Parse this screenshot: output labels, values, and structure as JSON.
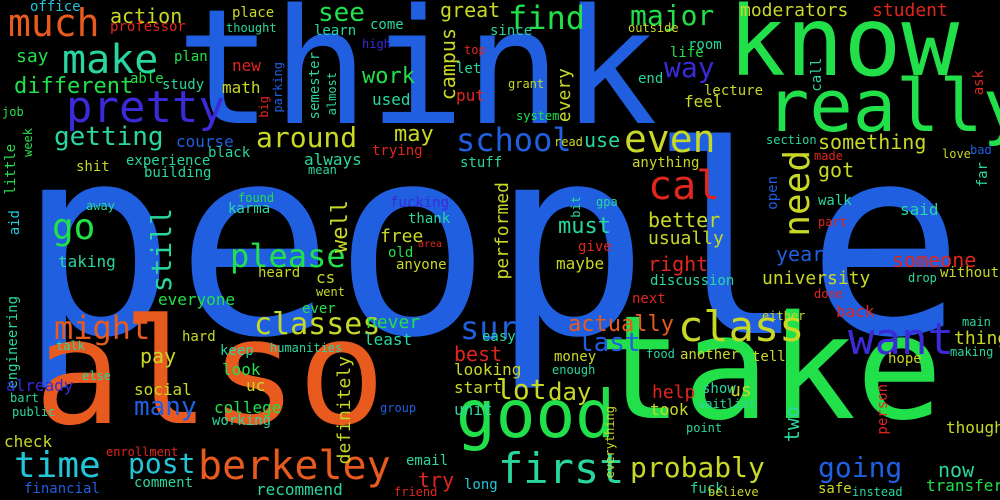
{
  "palette": {
    "background": "#000000",
    "blue": "#1f5fe0",
    "green": "#22e04a",
    "orange": "#e85a1e",
    "yellow": "#c8d826",
    "teal": "#2ad6a0",
    "cyan": "#22c6d8",
    "indigo": "#3a2ad8",
    "red": "#e0261f",
    "lime": "#7ad826",
    "gray_blue": "#3a6aa8"
  },
  "words": {
    "people": "people",
    "think": "think",
    "know": "know",
    "take": "take",
    "also": "also",
    "really": "really",
    "good": "good",
    "pretty": "pretty",
    "much": "much",
    "make": "make",
    "time": "time",
    "berkeley": "berkeley",
    "first": "first",
    "class": "class",
    "want": "want",
    "even": "even",
    "cal": "cal",
    "need": "need",
    "classes": "classes",
    "please": "please",
    "go": "go",
    "might": "might",
    "still": "still",
    "around": "around",
    "getting": "getting",
    "school": "school",
    "sure": "sure",
    "post": "post",
    "probably": "probably",
    "going": "going",
    "way": "way",
    "find": "find",
    "see": "see",
    "major": "major",
    "lot": "lot",
    "day": "day",
    "last": "last",
    "many": "many",
    "action": "action",
    "moderators": "moderators",
    "student": "student",
    "office": "office",
    "professor": "professor",
    "place": "place",
    "great": "great",
    "campus": "campus",
    "work": "work",
    "different": "different",
    "say": "say",
    "new": "new",
    "math": "math",
    "plan": "plan",
    "study": "study",
    "able": "able",
    "every": "every",
    "feel": "feel",
    "end": "end",
    "let": "let",
    "top": "top",
    "put": "put",
    "used": "used",
    "since": "since",
    "learn": "learn",
    "come": "come",
    "thought": "thought",
    "high": "high",
    "semester": "semester",
    "almost": "almost",
    "big": "big",
    "parking": "parking",
    "grant": "grant",
    "system": "system",
    "room": "room",
    "life": "life",
    "outside": "outside",
    "call": "call",
    "ask": "ask",
    "lecture": "lecture",
    "job": "job",
    "week": "week",
    "little": "little",
    "aid": "aid",
    "engineering": "engineering",
    "course": "course",
    "black": "black",
    "experience": "experience",
    "building": "building",
    "shit": "shit",
    "away": "away",
    "karma": "karma",
    "found": "found",
    "may": "may",
    "always": "always",
    "mean": "mean",
    "stuff": "stuff",
    "trying": "trying",
    "read": "read",
    "use": "use",
    "anything": "anything",
    "something": "something",
    "section": "section",
    "made": "made",
    "love": "love",
    "bad": "bad",
    "far": "far",
    "got": "got",
    "open": "open",
    "walk": "walk",
    "part": "part",
    "said": "said",
    "better": "better",
    "usually": "usually",
    "fucking": "fucking",
    "thank": "thank",
    "free": "free",
    "well": "well",
    "must": "must",
    "bit": "bit",
    "gpa": "gpa",
    "performed": "performed",
    "area": "area",
    "old": "old",
    "give": "give",
    "anyone": "anyone",
    "maybe": "maybe",
    "right": "right",
    "year": "year",
    "someone": "someone",
    "university": "university",
    "discussion": "discussion",
    "drop": "drop",
    "without": "without",
    "taking": "taking",
    "heard": "heard",
    "cs": "cs",
    "went": "went",
    "everyone": "everyone",
    "next": "next",
    "done": "done",
    "ever": "ever",
    "easy": "easy",
    "either": "either",
    "back": "back",
    "main": "main",
    "hard": "hard",
    "talk": "talk",
    "humanities": "humanities",
    "keep": "keep",
    "never": "never",
    "least": "least",
    "actually": "actually",
    "best": "best",
    "food": "food",
    "another": "another",
    "tell": "tell",
    "thing": "thing",
    "making": "making",
    "pay": "pay",
    "look": "look",
    "money": "money",
    "enough": "enough",
    "looking": "looking",
    "hope": "hope",
    "else": "else",
    "already": "already",
    "social": "social",
    "uc": "uc",
    "definitely": "definitely",
    "start": "start",
    "help": "help",
    "show": "show",
    "us": "us",
    "two": "two",
    "bart": "bart",
    "public": "public",
    "college": "college",
    "working": "working",
    "group": "group",
    "unit": "unit",
    "took": "took",
    "waitlist": "waitlist",
    "person": "person",
    "though": "though",
    "check": "check",
    "enrollment": "enrollment",
    "email": "email",
    "everything": "everything",
    "point": "point",
    "comment": "comment",
    "try": "try",
    "now": "now",
    "transfer": "transfer",
    "financial": "financial",
    "recommend": "recommend",
    "friend": "friend",
    "long": "long",
    "fuck": "fuck",
    "believe": "believe",
    "safe": "safe",
    "instead": "instead"
  }
}
